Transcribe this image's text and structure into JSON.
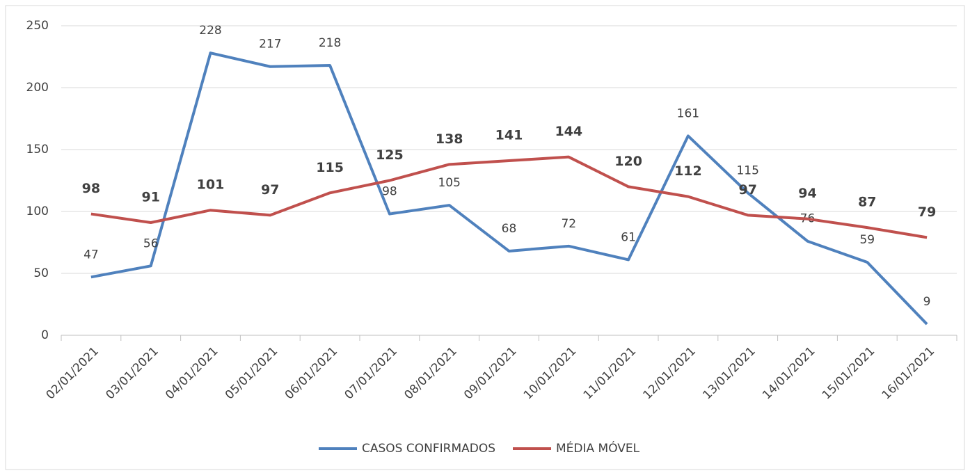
{
  "chart_data": {
    "type": "line",
    "categories": [
      "02/01/2021",
      "03/01/2021",
      "04/01/2021",
      "05/01/2021",
      "06/01/2021",
      "07/01/2021",
      "08/01/2021",
      "09/01/2021",
      "10/01/2021",
      "11/01/2021",
      "12/01/2021",
      "13/01/2021",
      "14/01/2021",
      "15/01/2021",
      "16/01/2021"
    ],
    "series": [
      {
        "name": "CASOS CONFIRMADOS",
        "color": "#4f81bd",
        "values": [
          47,
          56,
          228,
          217,
          218,
          98,
          105,
          68,
          72,
          61,
          161,
          115,
          76,
          59,
          9
        ]
      },
      {
        "name": "MÉDIA MÓVEL",
        "color": "#c0504d",
        "values": [
          98,
          91,
          101,
          97,
          115,
          125,
          138,
          141,
          144,
          120,
          112,
          97,
          94,
          87,
          79
        ]
      }
    ],
    "ylim": [
      0,
      250
    ],
    "yticks": [
      0,
      50,
      100,
      150,
      200,
      250
    ],
    "grid": true,
    "legend": "bottom"
  }
}
